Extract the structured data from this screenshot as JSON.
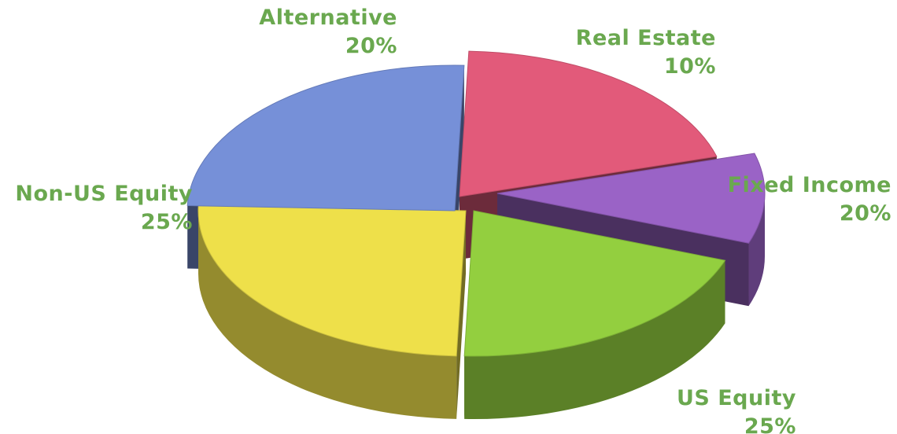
{
  "chart_data": {
    "type": "pie",
    "title": "",
    "style": "3d-exploded",
    "slices": [
      {
        "name": "Alternative",
        "value": 20,
        "label": "20%",
        "color": "#e25a7a"
      },
      {
        "name": "Real Estate",
        "value": 10,
        "label": "10%",
        "color": "#9a63c6"
      },
      {
        "name": "Fixed Income",
        "value": 20,
        "label": "20%",
        "color": "#93cf3f"
      },
      {
        "name": "US Equity",
        "value": 25,
        "label": "25%",
        "color": "#eee04a"
      },
      {
        "name": "Non-US Equity",
        "value": 25,
        "label": "25%",
        "color": "#7690d8"
      }
    ],
    "label_color": "#6aa84f"
  }
}
